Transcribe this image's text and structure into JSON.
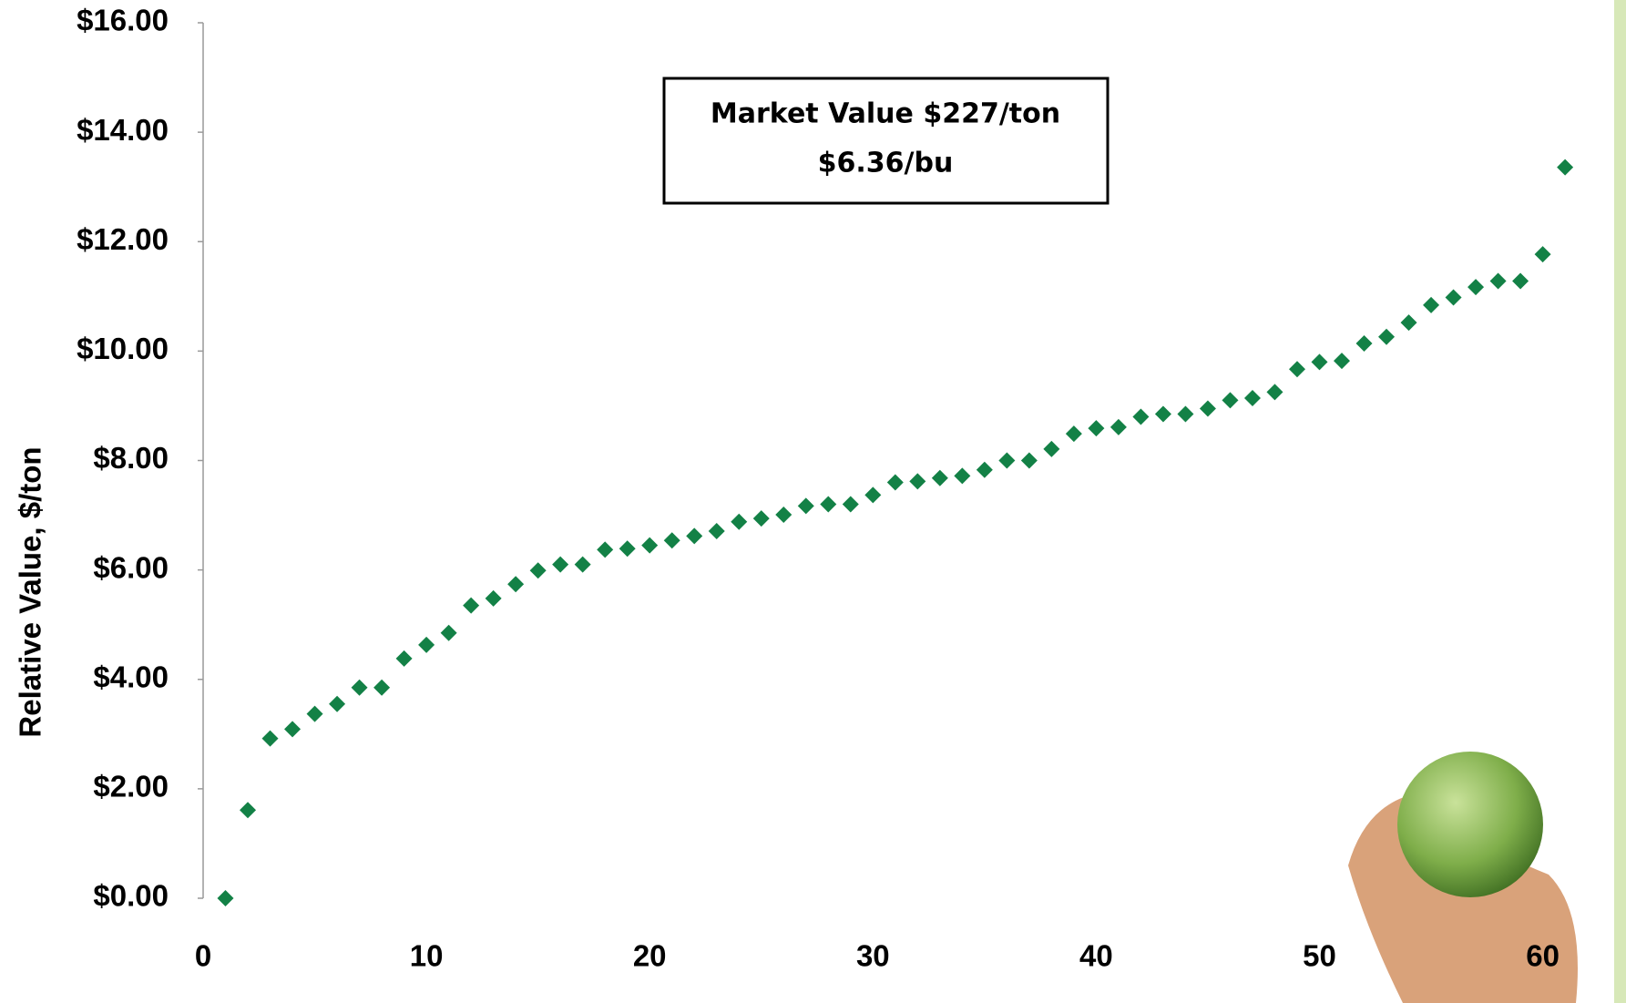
{
  "chart_data": {
    "type": "scatter",
    "y_label": "Relative Value, $/ton",
    "annotation": [
      "Market Value $227/ton",
      "$6.36/bu"
    ],
    "color": "#138146",
    "x": [
      1,
      2,
      3,
      4,
      5,
      6,
      7,
      8,
      9,
      10,
      11,
      12,
      13,
      14,
      15,
      16,
      17,
      18,
      19,
      20,
      21,
      22,
      23,
      24,
      25,
      26,
      27,
      28,
      29,
      30,
      31,
      32,
      33,
      34,
      35,
      36,
      37,
      38,
      39,
      40,
      41,
      42,
      43,
      44,
      45,
      46,
      47,
      48,
      49,
      50,
      51,
      52,
      53,
      54,
      55,
      56,
      57,
      58,
      59,
      60,
      61
    ],
    "values": [
      0,
      1.61,
      2.92,
      3.09,
      3.37,
      3.55,
      3.85,
      3.85,
      4.38,
      4.63,
      4.85,
      5.35,
      5.48,
      5.74,
      5.99,
      6.1,
      6.1,
      6.37,
      6.39,
      6.45,
      6.54,
      6.62,
      6.71,
      6.88,
      6.94,
      7.01,
      7.17,
      7.2,
      7.2,
      7.37,
      7.6,
      7.62,
      7.68,
      7.72,
      7.83,
      8.0,
      8.0,
      8.21,
      8.49,
      8.59,
      8.61,
      8.8,
      8.85,
      8.85,
      8.95,
      9.1,
      9.14,
      9.25,
      9.67,
      9.8,
      9.82,
      10.14,
      10.26,
      10.52,
      10.84,
      10.98,
      11.17,
      11.28,
      11.28,
      11.77,
      13.36
    ],
    "xlim": [
      0,
      62
    ],
    "xticks": [
      0,
      10,
      20,
      30,
      40,
      50,
      60
    ],
    "ylim": [
      0,
      16
    ],
    "yticks": [
      {
        "value": 0,
        "label": "$0.00"
      },
      {
        "value": 2,
        "label": "$2.00"
      },
      {
        "value": 4,
        "label": "$4.00"
      },
      {
        "value": 6,
        "label": "$6.00"
      },
      {
        "value": 8,
        "label": "$8.00"
      },
      {
        "value": 10,
        "label": "$10.00"
      },
      {
        "value": 12,
        "label": "$12.00"
      },
      {
        "value": 14,
        "label": "$14.00"
      },
      {
        "value": 16,
        "label": "$16.00"
      }
    ]
  }
}
